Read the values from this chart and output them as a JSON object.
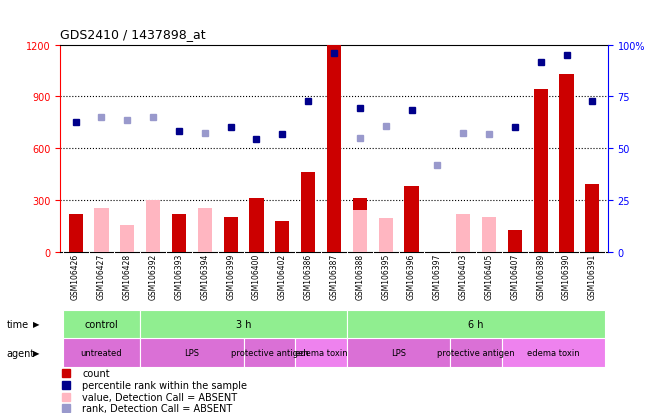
{
  "title": "GDS2410 / 1437898_at",
  "samples": [
    "GSM106426",
    "GSM106427",
    "GSM106428",
    "GSM106392",
    "GSM106393",
    "GSM106394",
    "GSM106399",
    "GSM106400",
    "GSM106402",
    "GSM106386",
    "GSM106387",
    "GSM106388",
    "GSM106395",
    "GSM106396",
    "GSM106397",
    "GSM106403",
    "GSM106405",
    "GSM106407",
    "GSM106389",
    "GSM106390",
    "GSM106391"
  ],
  "count_values": [
    220,
    0,
    0,
    0,
    220,
    0,
    200,
    310,
    175,
    460,
    1200,
    310,
    0,
    380,
    0,
    0,
    0,
    125,
    940,
    1030,
    390
  ],
  "absent_value": [
    0,
    255,
    155,
    300,
    0,
    255,
    0,
    0,
    0,
    0,
    0,
    240,
    195,
    0,
    0,
    215,
    200,
    0,
    0,
    0,
    0
  ],
  "rank_dark": [
    750,
    0,
    0,
    0,
    700,
    0,
    720,
    650,
    680,
    870,
    1150,
    830,
    0,
    820,
    0,
    0,
    0,
    720,
    1100,
    1140,
    870
  ],
  "rank_absent": [
    0,
    780,
    760,
    780,
    0,
    690,
    0,
    0,
    0,
    0,
    0,
    660,
    730,
    0,
    500,
    690,
    680,
    0,
    0,
    0,
    0
  ],
  "time_groups": [
    {
      "label": "control",
      "start": 0,
      "end": 3,
      "color": "#90EE90"
    },
    {
      "label": "3 h",
      "start": 3,
      "end": 11,
      "color": "#90EE90"
    },
    {
      "label": "6 h",
      "start": 11,
      "end": 21,
      "color": "#90EE90"
    }
  ],
  "agent_groups": [
    {
      "label": "untreated",
      "start": 0,
      "end": 3,
      "color": "#DA70D6"
    },
    {
      "label": "LPS",
      "start": 3,
      "end": 7,
      "color": "#DA70D6"
    },
    {
      "label": "protective antigen",
      "start": 7,
      "end": 9,
      "color": "#DA70D6"
    },
    {
      "label": "edema toxin",
      "start": 9,
      "end": 11,
      "color": "#EE82EE"
    },
    {
      "label": "LPS",
      "start": 11,
      "end": 15,
      "color": "#DA70D6"
    },
    {
      "label": "protective antigen",
      "start": 15,
      "end": 17,
      "color": "#DA70D6"
    },
    {
      "label": "edema toxin",
      "start": 17,
      "end": 21,
      "color": "#EE82EE"
    }
  ],
  "ylim_left": [
    0,
    1200
  ],
  "ylim_right": [
    0,
    100
  ],
  "yticks_left": [
    0,
    300,
    600,
    900,
    1200
  ],
  "yticks_right": [
    0,
    25,
    50,
    75,
    100
  ],
  "bar_color": "#CC0000",
  "absent_bar_color": "#FFB6C1",
  "rank_color": "#00008B",
  "rank_absent_color": "#9999CC",
  "bg_color": "#FFFFFF",
  "plot_bg": "#FFFFFF",
  "grey_bg": "#C8C8C8",
  "green_color": "#90EE90",
  "grid_lines": [
    300,
    600,
    900
  ]
}
